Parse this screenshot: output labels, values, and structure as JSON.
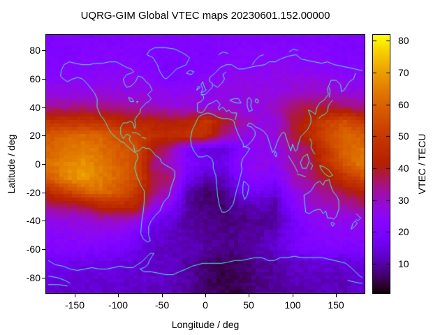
{
  "title": "UQRG-GIM Global VTEC maps 20230601.152.00000",
  "axes": {
    "x": {
      "label": "Longitude / deg",
      "ticks": [
        -150,
        -100,
        -50,
        0,
        50,
        100,
        150
      ],
      "range": [
        -182.5,
        182.5
      ]
    },
    "y": {
      "label": "Latitude / deg",
      "ticks": [
        -80,
        -60,
        -40,
        -20,
        0,
        20,
        40,
        60,
        80
      ],
      "range": [
        -91,
        91
      ]
    },
    "cb": {
      "label": "VTEC / TECU",
      "ticks": [
        10,
        20,
        30,
        40,
        50,
        60,
        70,
        80
      ],
      "range": [
        0.8,
        81.8
      ]
    }
  },
  "colors": {
    "background": "#ffffff",
    "text": "#000000",
    "border": "#000000",
    "coastline": "#4DEEDC"
  },
  "chart_data": {
    "type": "heatmap",
    "title": "UQRG-GIM Global VTEC maps 20230601.152.00000",
    "xlabel": "Longitude / deg",
    "ylabel": "Latitude / deg",
    "colorbar_label": "VTEC / TECU",
    "xlim": [
      -182.5,
      182.5
    ],
    "ylim": [
      -91,
      91
    ],
    "cblim": [
      0.8,
      81.8
    ],
    "grid": false,
    "cell_deg": {
      "lon": 5,
      "lat": 2.5
    },
    "palette": {
      "name": "gnuplot rgbformulae 7,5,15 (r=sqrt(t), g=t^3, b=sin(2*pi*t))",
      "stops": [
        {
          "value": 0,
          "hex": "#000000"
        },
        {
          "value": 10,
          "hex": "#5600A7"
        },
        {
          "value": 20,
          "hex": "#7C03FE"
        },
        {
          "value": 30,
          "hex": "#990CC4"
        },
        {
          "value": 40,
          "hex": "#B11D1A"
        },
        {
          "value": 50,
          "hex": "#C73900"
        },
        {
          "value": 60,
          "hex": "#DA6400"
        },
        {
          "value": 70,
          "hex": "#EC9F00"
        },
        {
          "value": 80,
          "hex": "#FCEE00"
        }
      ]
    },
    "lon": [
      -180,
      -160,
      -140,
      -120,
      -100,
      -80,
      -60,
      -40,
      -20,
      0,
      20,
      40,
      60,
      80,
      100,
      120,
      140,
      160,
      180
    ],
    "lat": [
      90,
      80,
      70,
      60,
      50,
      40,
      30,
      20,
      10,
      0,
      -10,
      -20,
      -30,
      -40,
      -50,
      -60,
      -70,
      -80,
      -90
    ],
    "vtec": [
      [
        21,
        21,
        21,
        21,
        21,
        22,
        22,
        22,
        22,
        22,
        22,
        22,
        22,
        22,
        21,
        21,
        21,
        21,
        21
      ],
      [
        21,
        21,
        22,
        22,
        22,
        22,
        22,
        21,
        21,
        21,
        22,
        22,
        23,
        23,
        23,
        23,
        22,
        21,
        21
      ],
      [
        22,
        22,
        23,
        23,
        23,
        23,
        22,
        19,
        21,
        22,
        23,
        24,
        24,
        25,
        25,
        24,
        23,
        22,
        22
      ],
      [
        24,
        24,
        24,
        25,
        25,
        25,
        24,
        20,
        22,
        24,
        25,
        26,
        26,
        26,
        27,
        27,
        26,
        25,
        24
      ],
      [
        27,
        27,
        27,
        28,
        28,
        27,
        26,
        25,
        26,
        26,
        27,
        27,
        27,
        27,
        29,
        30,
        30,
        28,
        27
      ],
      [
        33,
        33,
        34,
        34,
        33,
        32,
        30,
        29,
        28,
        27,
        28,
        27,
        28,
        30,
        35,
        38,
        38,
        36,
        33
      ],
      [
        48,
        48,
        48,
        47,
        45,
        43,
        42,
        41,
        42,
        50,
        40,
        33,
        27,
        27,
        38,
        44,
        52,
        56,
        50
      ],
      [
        58,
        60,
        61,
        60,
        56,
        52,
        47,
        46,
        48,
        47,
        35,
        28,
        26,
        28,
        38,
        45,
        55,
        60,
        58
      ],
      [
        60,
        63,
        65,
        62,
        58,
        56,
        40,
        32,
        20,
        14,
        13,
        22,
        25,
        26,
        33,
        38,
        50,
        60,
        62
      ],
      [
        62,
        66,
        68,
        64,
        60,
        55,
        35,
        30,
        22,
        18,
        16,
        24,
        26,
        25,
        32,
        36,
        48,
        58,
        64
      ],
      [
        58,
        66,
        70,
        65,
        60,
        55,
        38,
        36,
        18,
        12,
        12,
        20,
        24,
        22,
        30,
        34,
        40,
        48,
        55
      ],
      [
        45,
        52,
        58,
        62,
        58,
        50,
        36,
        30,
        10,
        6,
        8,
        16,
        18,
        14,
        26,
        30,
        34,
        38,
        42
      ],
      [
        34,
        36,
        38,
        44,
        46,
        44,
        28,
        22,
        10,
        7,
        6,
        10,
        12,
        10,
        22,
        28,
        30,
        32,
        35
      ],
      [
        26,
        27,
        28,
        30,
        30,
        28,
        18,
        14,
        10,
        8,
        7,
        8,
        9,
        9,
        18,
        24,
        26,
        26,
        27
      ],
      [
        24,
        24,
        25,
        25,
        24,
        20,
        14,
        12,
        10,
        9,
        8,
        9,
        10,
        12,
        18,
        22,
        23,
        23,
        24
      ],
      [
        22,
        22,
        22,
        21,
        20,
        16,
        13,
        12,
        11,
        10,
        8,
        9,
        11,
        13,
        18,
        21,
        22,
        21,
        22
      ],
      [
        17,
        17,
        16,
        16,
        15,
        14,
        13,
        12,
        10,
        7,
        5,
        6,
        9,
        10,
        13,
        14,
        14,
        13,
        15
      ],
      [
        15,
        15,
        14,
        14,
        14,
        13,
        13,
        12,
        10,
        6,
        4,
        5,
        8,
        9,
        11,
        12,
        12,
        12,
        14
      ],
      [
        13,
        13,
        13,
        13,
        13,
        12,
        12,
        11,
        10,
        7,
        5,
        5,
        8,
        9,
        10,
        11,
        11,
        11,
        13
      ]
    ]
  }
}
